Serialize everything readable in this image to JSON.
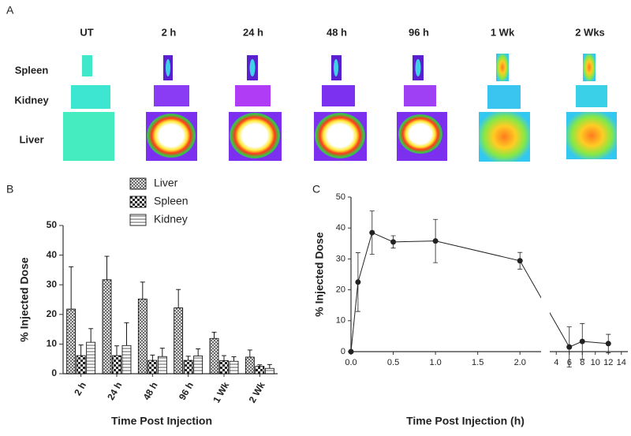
{
  "image_panel": {
    "panel_label": "A",
    "columns": [
      "UT",
      "2 h",
      "24 h",
      "48 h",
      "96 h",
      "1 Wk",
      "2 Wks"
    ],
    "rows": [
      "Spleen",
      "Kidney",
      "Liver"
    ]
  },
  "chart_data": [
    {
      "type": "bar",
      "panel_label": "B",
      "categories": [
        "2 h",
        "24 h",
        "48 h",
        "96 h",
        "1 Wk",
        "2 Wk"
      ],
      "series": [
        {
          "name": "Liver",
          "pattern": "crosshatch",
          "color": "#000000",
          "values": [
            21.8,
            31.7,
            25.2,
            22.2,
            11.9,
            5.6
          ],
          "errors": [
            14.3,
            7.9,
            5.7,
            6.2,
            2.1,
            2.4
          ]
        },
        {
          "name": "Spleen",
          "pattern": "checker",
          "color": "#000000",
          "values": [
            6.1,
            6.1,
            4.5,
            4.5,
            4.4,
            2.5
          ],
          "errors": [
            3.6,
            3.3,
            1.8,
            1.4,
            1.7,
            0.5
          ]
        },
        {
          "name": "Kidney",
          "pattern": "hlines",
          "color": "#000000",
          "values": [
            10.6,
            9.5,
            5.8,
            6.0,
            4.2,
            1.8
          ],
          "errors": [
            4.6,
            7.7,
            2.8,
            2.4,
            1.5,
            1.3
          ]
        }
      ],
      "ylim": [
        0,
        50
      ],
      "yticks": [
        0,
        10,
        20,
        30,
        40,
        50
      ],
      "ylabel": "% Injected Dose",
      "xlabel": "Time Post Injection"
    },
    {
      "type": "line",
      "panel_label": "C",
      "x": [
        0,
        0.083,
        0.25,
        0.5,
        1,
        2,
        6,
        8,
        12
      ],
      "values": [
        0,
        22.5,
        38.5,
        35.5,
        35.8,
        29.4,
        1.5,
        3.3,
        2.6
      ],
      "errors": [
        0,
        9.5,
        7,
        2,
        7,
        2.7,
        6.5,
        5.8,
        3
      ],
      "color": "#222222",
      "xlim": [
        0,
        15
      ],
      "xbreak": [
        2.25,
        3
      ],
      "xticks": [
        {
          "value": 0,
          "label": "0.0"
        },
        {
          "value": 0.5,
          "label": "0.5"
        },
        {
          "value": 1,
          "label": "1.0"
        },
        {
          "value": 1.5,
          "label": "1.5"
        },
        {
          "value": 2,
          "label": "2.0"
        },
        4,
        6,
        8,
        10,
        12,
        14
      ],
      "ylim": [
        0,
        50
      ],
      "yticks": [
        0,
        10,
        20,
        30,
        40,
        50
      ],
      "ylabel": "% Injected Dose",
      "xlabel": "Time Post Injection (h)"
    }
  ]
}
